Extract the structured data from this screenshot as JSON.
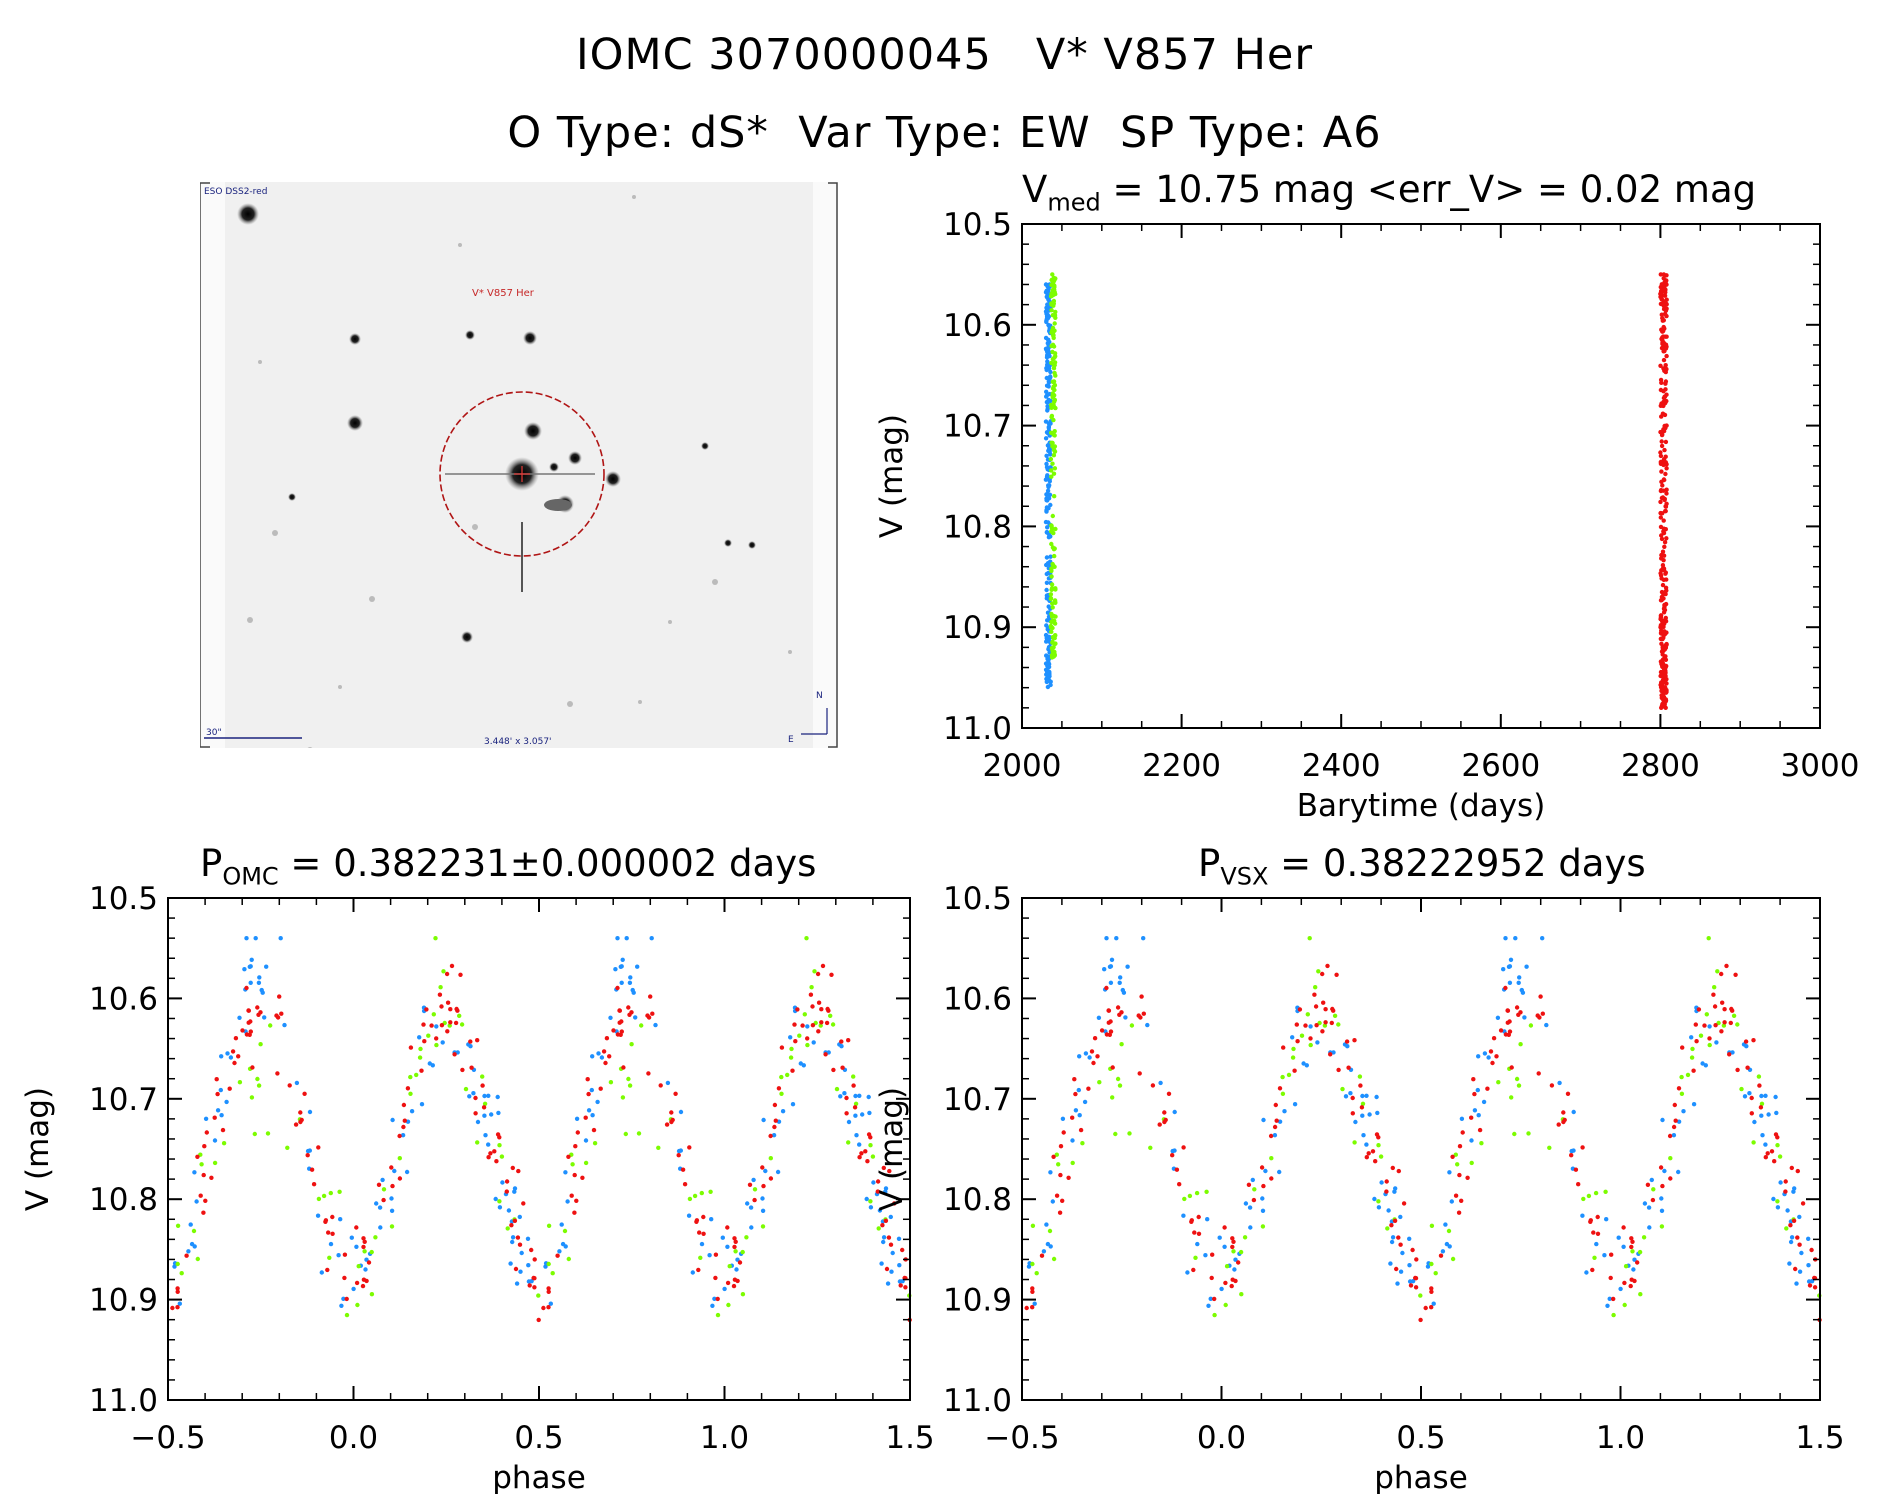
{
  "header": {
    "line1": "IOMC 3070000045   V* V857 Her",
    "line2": "O Type: dS*  Var Type: EW  SP Type: A6"
  },
  "finder": {
    "survey_label": "ESO DSS2-red",
    "object_label": "V* V857 Her",
    "scale_label": "30\"",
    "fov_label": "3.448' x 3.057'",
    "north_label": "N",
    "east_label": "E",
    "colors": {
      "circle": "#b01515",
      "labels": "#1a237e",
      "object_label": "#c62828"
    }
  },
  "panels": {
    "lightcurve": {
      "title_main": "V",
      "title_sub": "med",
      "title_rest": " = 10.75 mag <err_V> = 0.02 mag"
    },
    "phase_omc": {
      "title_main": "P",
      "title_sub": "OMC",
      "title_rest": " = 0.382231±0.000002 days"
    },
    "phase_vsx": {
      "title_main": "P",
      "title_sub": "VSX",
      "title_rest": " = 0.38222952 days"
    }
  },
  "chart_data": [
    {
      "id": "lightcurve",
      "type": "scatter",
      "xlabel": "Barytime (days)",
      "ylabel": "V (mag)",
      "xlim": [
        2000,
        3000
      ],
      "ylim": [
        11.0,
        10.5
      ],
      "inverted_y": true,
      "xticks": [
        2000,
        2200,
        2400,
        2600,
        2800,
        3000
      ],
      "xtick_labels": [
        "2000",
        "2200",
        "2400",
        "2600",
        "2800",
        "3000"
      ],
      "yticks": [
        10.5,
        10.6,
        10.7,
        10.8,
        10.9,
        11.0
      ],
      "ytick_labels": [
        "10.5",
        "10.6",
        "10.7",
        "10.8",
        "10.9",
        "11.0"
      ],
      "series": [
        {
          "color": "#1e90ff",
          "x_range": [
            2030,
            2036
          ],
          "y_range": [
            10.56,
            10.96
          ],
          "n": 260
        },
        {
          "color": "#7cfc00",
          "x_range": [
            2036,
            2042
          ],
          "y_range": [
            10.55,
            10.93
          ],
          "n": 170
        },
        {
          "color": "#ee1111",
          "x_range": [
            2800,
            2808
          ],
          "y_range": [
            10.55,
            10.98
          ],
          "n": 320
        }
      ]
    },
    {
      "id": "phase_omc",
      "type": "scatter",
      "xlabel": "phase",
      "ylabel": "V (mag)",
      "xlim": [
        -0.5,
        1.5
      ],
      "ylim": [
        11.0,
        10.5
      ],
      "inverted_y": true,
      "xticks": [
        -0.5,
        0.0,
        0.5,
        1.0,
        1.5
      ],
      "xtick_labels": [
        "−0.5",
        "0.0",
        "0.5",
        "1.0",
        "1.5"
      ],
      "yticks": [
        10.5,
        10.6,
        10.7,
        10.8,
        10.9,
        11.0
      ],
      "ytick_labels": [
        "10.5",
        "10.6",
        "10.7",
        "10.8",
        "10.9",
        "11.0"
      ],
      "model": {
        "mean": 10.74,
        "half_amplitude": 0.13,
        "max_phases": [
          -0.25,
          0.25
        ],
        "min_phases": [
          0.0,
          0.5
        ]
      },
      "series": [
        {
          "color": "#1e90ff",
          "n_per_cycle": 110,
          "peak_offset": -0.04,
          "scatter": 0.03
        },
        {
          "color": "#7cfc00",
          "n_per_cycle": 60,
          "peak_offset": 0.02,
          "scatter": 0.03
        },
        {
          "color": "#ee1111",
          "n_per_cycle": 130,
          "peak_offset": 0.0,
          "scatter": 0.025
        }
      ]
    },
    {
      "id": "phase_vsx",
      "type": "scatter",
      "xlabel": "phase",
      "ylabel": "V (mag)",
      "xlim": [
        -0.5,
        1.5
      ],
      "ylim": [
        11.0,
        10.5
      ],
      "inverted_y": true,
      "xticks": [
        -0.5,
        0.0,
        0.5,
        1.0,
        1.5
      ],
      "xtick_labels": [
        "−0.5",
        "0.0",
        "0.5",
        "1.0",
        "1.5"
      ],
      "yticks": [
        10.5,
        10.6,
        10.7,
        10.8,
        10.9,
        11.0
      ],
      "ytick_labels": [
        "10.5",
        "10.6",
        "10.7",
        "10.8",
        "10.9",
        "11.0"
      ],
      "model": {
        "mean": 10.74,
        "half_amplitude": 0.13,
        "max_phases": [
          -0.25,
          0.25
        ],
        "min_phases": [
          0.0,
          0.5
        ]
      },
      "series": [
        {
          "color": "#1e90ff",
          "n_per_cycle": 110,
          "peak_offset": -0.04,
          "scatter": 0.03
        },
        {
          "color": "#7cfc00",
          "n_per_cycle": 60,
          "peak_offset": 0.02,
          "scatter": 0.03
        },
        {
          "color": "#ee1111",
          "n_per_cycle": 130,
          "peak_offset": 0.0,
          "scatter": 0.025
        }
      ]
    }
  ]
}
